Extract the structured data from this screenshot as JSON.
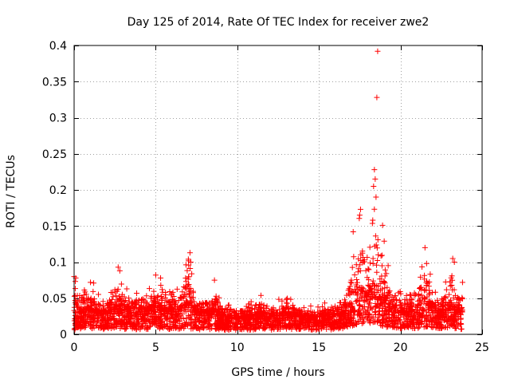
{
  "chart_data": {
    "type": "scatter",
    "title": "Day 125 of 2014, Rate Of TEC Index for receiver zwe2",
    "xlabel": "GPS time / hours",
    "ylabel": "ROTI / TECUs",
    "xlim": [
      0,
      25
    ],
    "ylim": [
      0,
      0.4
    ],
    "xticks": [
      0,
      5,
      10,
      15,
      20,
      25
    ],
    "xtick_labels": [
      "0",
      "5",
      "10",
      "15",
      "20",
      "25"
    ],
    "yticks": [
      0,
      0.05,
      0.1,
      0.15,
      0.2,
      0.25,
      0.3,
      0.35,
      0.4
    ],
    "ytick_labels": [
      "0",
      "0.05",
      "0.1",
      "0.15",
      "0.2",
      "0.25",
      "0.3",
      "0.35",
      "0.4"
    ],
    "grid": true,
    "marker": "+",
    "color": "#ff0000",
    "series": [
      {
        "name": "ROTI",
        "notable_points": [
          {
            "x": 18.6,
            "y": 0.392
          },
          {
            "x": 18.55,
            "y": 0.328
          },
          {
            "x": 18.4,
            "y": 0.228
          },
          {
            "x": 18.45,
            "y": 0.215
          },
          {
            "x": 18.35,
            "y": 0.205
          },
          {
            "x": 18.5,
            "y": 0.19
          },
          {
            "x": 17.55,
            "y": 0.173
          },
          {
            "x": 17.5,
            "y": 0.165
          },
          {
            "x": 18.9,
            "y": 0.151
          },
          {
            "x": 18.3,
            "y": 0.158
          },
          {
            "x": 17.1,
            "y": 0.142
          },
          {
            "x": 19.0,
            "y": 0.129
          },
          {
            "x": 21.5,
            "y": 0.12
          },
          {
            "x": 7.1,
            "y": 0.113
          },
          {
            "x": 7.0,
            "y": 0.104
          },
          {
            "x": 7.15,
            "y": 0.1
          },
          {
            "x": 23.2,
            "y": 0.105
          },
          {
            "x": 23.3,
            "y": 0.1
          },
          {
            "x": 2.7,
            "y": 0.093
          },
          {
            "x": 2.8,
            "y": 0.088
          },
          {
            "x": 21.6,
            "y": 0.098
          },
          {
            "x": 0.0,
            "y": 0.08
          },
          {
            "x": 0.1,
            "y": 0.078
          },
          {
            "x": 5.0,
            "y": 0.082
          },
          {
            "x": 5.3,
            "y": 0.078
          },
          {
            "x": 8.6,
            "y": 0.075
          },
          {
            "x": 23.8,
            "y": 0.072
          },
          {
            "x": 1.0,
            "y": 0.072
          },
          {
            "x": 1.2,
            "y": 0.071
          }
        ],
        "envelope_hours": [
          0,
          0.5,
          1,
          1.5,
          2,
          2.5,
          3,
          3.5,
          4,
          4.5,
          5,
          5.5,
          6,
          6.5,
          7,
          7.5,
          8,
          8.5,
          9,
          9.5,
          10,
          10.5,
          11,
          11.5,
          12,
          12.5,
          13,
          13.5,
          14,
          14.5,
          15,
          15.5,
          16,
          16.5,
          17,
          17.5,
          18,
          18.5,
          19,
          19.5,
          20,
          20.5,
          21,
          21.5,
          22,
          22.5,
          23,
          23.5,
          23.8
        ],
        "envelope_upper": [
          0.08,
          0.065,
          0.07,
          0.055,
          0.05,
          0.085,
          0.07,
          0.055,
          0.06,
          0.07,
          0.08,
          0.065,
          0.06,
          0.065,
          0.11,
          0.06,
          0.055,
          0.07,
          0.05,
          0.045,
          0.04,
          0.04,
          0.05,
          0.055,
          0.045,
          0.05,
          0.055,
          0.045,
          0.04,
          0.04,
          0.04,
          0.045,
          0.045,
          0.05,
          0.1,
          0.17,
          0.13,
          0.2,
          0.12,
          0.07,
          0.06,
          0.06,
          0.08,
          0.11,
          0.07,
          0.05,
          0.1,
          0.07,
          0.07
        ],
        "envelope_lower": [
          0.005,
          0.008,
          0.008,
          0.006,
          0.007,
          0.008,
          0.007,
          0.007,
          0.006,
          0.007,
          0.008,
          0.007,
          0.007,
          0.007,
          0.008,
          0.007,
          0.006,
          0.007,
          0.006,
          0.006,
          0.006,
          0.006,
          0.006,
          0.007,
          0.006,
          0.007,
          0.007,
          0.007,
          0.007,
          0.006,
          0.006,
          0.006,
          0.007,
          0.008,
          0.01,
          0.012,
          0.015,
          0.015,
          0.01,
          0.009,
          0.008,
          0.008,
          0.008,
          0.01,
          0.009,
          0.008,
          0.008,
          0.007,
          0.007
        ],
        "envelope_typical": [
          0.035,
          0.03,
          0.032,
          0.028,
          0.028,
          0.035,
          0.032,
          0.03,
          0.03,
          0.032,
          0.034,
          0.032,
          0.03,
          0.032,
          0.04,
          0.03,
          0.028,
          0.03,
          0.025,
          0.022,
          0.022,
          0.022,
          0.025,
          0.027,
          0.023,
          0.025,
          0.027,
          0.024,
          0.022,
          0.022,
          0.022,
          0.023,
          0.024,
          0.026,
          0.04,
          0.055,
          0.05,
          0.06,
          0.045,
          0.035,
          0.032,
          0.03,
          0.035,
          0.045,
          0.035,
          0.028,
          0.038,
          0.03,
          0.03
        ]
      }
    ]
  }
}
